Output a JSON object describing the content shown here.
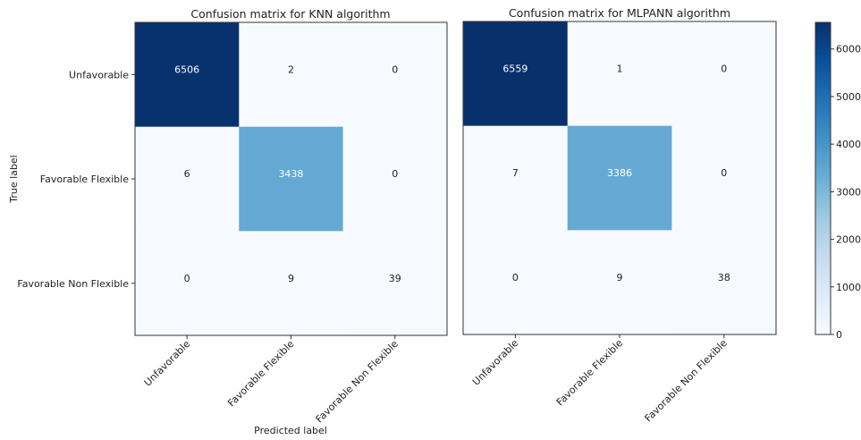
{
  "colors": {
    "colormap": [
      "#f7fbff",
      "#deebf7",
      "#c6dbef",
      "#9ecae1",
      "#6baed6",
      "#4292c6",
      "#2171b5",
      "#08519c",
      "#08306b"
    ],
    "text_dark": "#222222",
    "text_light": "#ffffff",
    "axis": "#333333"
  },
  "shared": {
    "ylabel": "True label",
    "xlabel": "Predicted label"
  },
  "colorbar": {
    "min": 0,
    "max": 6559,
    "ticks": [
      0,
      1000,
      2000,
      3000,
      4000,
      5000,
      6000
    ]
  },
  "chart_data": [
    {
      "type": "heatmap",
      "title": "Confusion matrix for KNN algorithm",
      "x_categories": [
        "Unfavorable",
        "Favorable Flexible",
        "Favorable Non Flexible"
      ],
      "y_categories": [
        "Unfavorable",
        "Favorable Flexible",
        "Favorable Non Flexible"
      ],
      "values": [
        [
          6506,
          2,
          0
        ],
        [
          6,
          3438,
          0
        ],
        [
          0,
          9,
          39
        ]
      ],
      "xlabel": "Predicted label",
      "ylabel": "True label"
    },
    {
      "type": "heatmap",
      "title": "Confusion matrix for MLPANN algorithm",
      "x_categories": [
        "Unfavorable",
        "Favorable Flexible",
        "Favorable Non Flexible"
      ],
      "y_categories": [
        "Unfavorable",
        "Favorable Flexible",
        "Favorable Non Flexible"
      ],
      "values": [
        [
          6559,
          1,
          0
        ],
        [
          7,
          3386,
          0
        ],
        [
          0,
          9,
          38
        ]
      ],
      "xlabel": "Predicted label",
      "ylabel": ""
    }
  ]
}
